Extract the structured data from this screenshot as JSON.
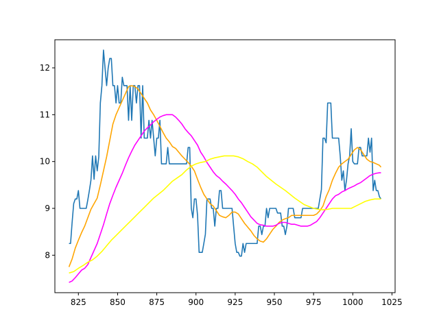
{
  "chart_data": {
    "type": "line",
    "title": "",
    "xlabel": "",
    "ylabel": "",
    "xlim": [
      810,
      1027
    ],
    "ylim": [
      7.2,
      12.6
    ],
    "grid": false,
    "legend": "none",
    "x_ticks": [
      825,
      850,
      875,
      900,
      925,
      950,
      975,
      1000,
      1025
    ],
    "y_ticks": [
      8,
      9,
      10,
      11,
      12
    ],
    "series": [
      {
        "color": "#1f77b4",
        "x": [
          819,
          820,
          821,
          822,
          823,
          824,
          825,
          826,
          827,
          828,
          829,
          830,
          831,
          832,
          833,
          834,
          835,
          836,
          837,
          838,
          839,
          840,
          841,
          842,
          843,
          844,
          845,
          846,
          847,
          848,
          849,
          850,
          851,
          852,
          853,
          854,
          855,
          856,
          857,
          858,
          859,
          860,
          861,
          862,
          863,
          864,
          865,
          866,
          867,
          868,
          869,
          870,
          871,
          872,
          873,
          874,
          875,
          876,
          877,
          878,
          879,
          880,
          881,
          882,
          883,
          884,
          885,
          886,
          887,
          888,
          889,
          890,
          891,
          892,
          893,
          894,
          895,
          896,
          897,
          898,
          899,
          900,
          901,
          902,
          903,
          904,
          905,
          906,
          907,
          908,
          909,
          910,
          911,
          912,
          913,
          914,
          915,
          916,
          917,
          918,
          919,
          920,
          921,
          922,
          923,
          924,
          925,
          926,
          927,
          928,
          929,
          930,
          931,
          932,
          933,
          934,
          935,
          936,
          937,
          938,
          939,
          940,
          941,
          942,
          943,
          944,
          945,
          946,
          947,
          948,
          949,
          950,
          951,
          952,
          953,
          954,
          955,
          956,
          957,
          958,
          959,
          960,
          961,
          962,
          963,
          964,
          965,
          966,
          967,
          968,
          969,
          970,
          971,
          972,
          973,
          974,
          975,
          976,
          977,
          978,
          979,
          980,
          981,
          982,
          983,
          984,
          985,
          986,
          987,
          988,
          989,
          990,
          991,
          992,
          993,
          994,
          995,
          996,
          997,
          998,
          999,
          1000,
          1001,
          1002,
          1003,
          1004,
          1005,
          1006,
          1007,
          1008,
          1009,
          1010,
          1011,
          1012,
          1013,
          1014,
          1015,
          1016,
          1017,
          1018
        ],
        "y": [
          8.25,
          8.25,
          8.7,
          9.1,
          9.2,
          9.2,
          9.38,
          9.0,
          9.0,
          9.0,
          9.0,
          9.0,
          9.18,
          9.38,
          9.6,
          10.12,
          9.62,
          10.12,
          9.8,
          10.1,
          11.25,
          11.62,
          12.38,
          12.0,
          11.62,
          12.0,
          12.2,
          12.2,
          11.62,
          11.62,
          11.25,
          11.62,
          11.25,
          11.25,
          11.8,
          11.62,
          11.62,
          11.62,
          10.88,
          11.62,
          10.88,
          11.62,
          11.62,
          11.25,
          11.62,
          11.62,
          10.5,
          11.62,
          10.5,
          10.5,
          10.5,
          10.88,
          10.5,
          10.88,
          10.5,
          10.12,
          10.5,
          10.5,
          10.88,
          9.95,
          9.95,
          9.95,
          9.95,
          10.3,
          9.95,
          9.95,
          9.95,
          9.95,
          9.95,
          9.95,
          9.95,
          9.95,
          9.95,
          9.95,
          9.95,
          9.95,
          10.3,
          10.3,
          9.0,
          8.8,
          9.2,
          9.2,
          8.85,
          8.06,
          8.06,
          8.06,
          8.25,
          8.45,
          9.2,
          9.2,
          9.2,
          9.0,
          9.0,
          8.62,
          9.0,
          9.0,
          9.38,
          9.38,
          9.0,
          9.0,
          9.0,
          9.0,
          9.0,
          9.0,
          9.0,
          8.62,
          8.25,
          8.06,
          8.06,
          7.98,
          7.98,
          8.25,
          8.06,
          8.25,
          8.25,
          8.25,
          8.25,
          8.25,
          8.25,
          8.25,
          8.25,
          8.62,
          8.62,
          8.44,
          8.62,
          8.62,
          9.0,
          8.8,
          9.0,
          9.0,
          9.0,
          9.0,
          9.0,
          8.9,
          8.9,
          8.9,
          8.62,
          8.62,
          8.44,
          8.62,
          9.0,
          9.0,
          9.0,
          9.0,
          8.8,
          8.8,
          8.8,
          8.8,
          8.8,
          9.0,
          9.0,
          9.0,
          9.0,
          9.0,
          9.0,
          9.0,
          9.0,
          9.0,
          9.0,
          9.0,
          9.2,
          9.4,
          10.5,
          10.5,
          10.4,
          11.25,
          11.25,
          11.25,
          10.5,
          10.5,
          10.5,
          10.5,
          10.5,
          10.12,
          9.6,
          9.8,
          9.38,
          9.6,
          9.95,
          10.12,
          10.7,
          10.0,
          9.95,
          9.95,
          9.95,
          10.3,
          10.3,
          10.12,
          10.12,
          10.12,
          10.12,
          10.5,
          10.2,
          10.5,
          9.38,
          9.6,
          9.38,
          9.38,
          9.25,
          9.2
        ]
      },
      {
        "color": "#ffa500",
        "x": [
          819,
          821,
          823,
          825,
          827,
          829,
          831,
          833,
          835,
          837,
          839,
          841,
          843,
          845,
          847,
          849,
          851,
          853,
          855,
          857,
          859,
          861,
          863,
          865,
          867,
          869,
          871,
          873,
          875,
          877,
          879,
          881,
          883,
          885,
          887,
          889,
          891,
          893,
          895,
          897,
          899,
          901,
          903,
          905,
          907,
          909,
          911,
          913,
          915,
          917,
          919,
          921,
          923,
          925,
          927,
          929,
          931,
          933,
          935,
          937,
          939,
          941,
          943,
          945,
          947,
          949,
          951,
          953,
          955,
          957,
          959,
          961,
          963,
          965,
          967,
          969,
          971,
          973,
          975,
          977,
          979,
          981,
          983,
          985,
          987,
          989,
          991,
          993,
          995,
          997,
          999,
          1001,
          1003,
          1005,
          1007,
          1009,
          1011,
          1013,
          1015,
          1017,
          1018
        ],
        "y": [
          7.75,
          7.92,
          8.15,
          8.32,
          8.48,
          8.62,
          8.8,
          8.98,
          9.1,
          9.22,
          9.5,
          9.8,
          10.1,
          10.45,
          10.8,
          11.0,
          11.15,
          11.3,
          11.45,
          11.6,
          11.62,
          11.6,
          11.55,
          11.45,
          11.35,
          11.25,
          11.1,
          11.0,
          10.88,
          10.75,
          10.62,
          10.5,
          10.42,
          10.32,
          10.28,
          10.2,
          10.12,
          10.05,
          9.98,
          9.9,
          9.8,
          9.62,
          9.45,
          9.3,
          9.2,
          9.1,
          9.05,
          8.95,
          8.85,
          8.82,
          8.8,
          8.85,
          8.92,
          8.92,
          8.88,
          8.78,
          8.68,
          8.6,
          8.52,
          8.42,
          8.35,
          8.3,
          8.28,
          8.35,
          8.45,
          8.55,
          8.62,
          8.7,
          8.75,
          8.78,
          8.8,
          8.85,
          8.85,
          8.85,
          8.85,
          8.85,
          8.85,
          8.85,
          8.85,
          8.88,
          8.95,
          9.05,
          9.25,
          9.4,
          9.6,
          9.75,
          9.88,
          9.95,
          10.0,
          10.05,
          10.15,
          10.25,
          10.3,
          10.25,
          10.15,
          10.05,
          10.0,
          9.98,
          9.95,
          9.92,
          9.88
        ]
      },
      {
        "color": "#ff00ff",
        "x": [
          819,
          821,
          823,
          825,
          827,
          829,
          831,
          833,
          835,
          837,
          839,
          841,
          843,
          845,
          847,
          849,
          851,
          853,
          855,
          857,
          859,
          861,
          863,
          865,
          867,
          869,
          871,
          873,
          875,
          877,
          879,
          881,
          883,
          885,
          887,
          889,
          891,
          893,
          895,
          897,
          899,
          901,
          903,
          905,
          907,
          909,
          911,
          913,
          915,
          917,
          919,
          921,
          923,
          925,
          927,
          929,
          931,
          933,
          935,
          937,
          939,
          941,
          943,
          945,
          947,
          949,
          951,
          953,
          955,
          957,
          959,
          961,
          963,
          965,
          967,
          969,
          971,
          973,
          975,
          977,
          979,
          981,
          983,
          985,
          987,
          989,
          991,
          993,
          995,
          997,
          999,
          1001,
          1003,
          1005,
          1007,
          1009,
          1011,
          1013,
          1015,
          1017,
          1018
        ],
        "y": [
          7.42,
          7.45,
          7.52,
          7.6,
          7.68,
          7.72,
          7.8,
          7.95,
          8.1,
          8.25,
          8.45,
          8.65,
          8.88,
          9.1,
          9.28,
          9.45,
          9.6,
          9.75,
          9.92,
          10.08,
          10.22,
          10.35,
          10.45,
          10.55,
          10.65,
          10.72,
          10.78,
          10.85,
          10.9,
          10.95,
          10.98,
          11.0,
          11.0,
          11.0,
          10.95,
          10.88,
          10.8,
          10.7,
          10.62,
          10.55,
          10.45,
          10.35,
          10.2,
          10.1,
          9.98,
          9.88,
          9.78,
          9.7,
          9.65,
          9.58,
          9.52,
          9.45,
          9.38,
          9.3,
          9.2,
          9.12,
          9.02,
          8.92,
          8.82,
          8.75,
          8.68,
          8.65,
          8.64,
          8.62,
          8.62,
          8.62,
          8.64,
          8.68,
          8.7,
          8.7,
          8.68,
          8.66,
          8.66,
          8.64,
          8.62,
          8.62,
          8.62,
          8.64,
          8.68,
          8.72,
          8.8,
          8.9,
          9.0,
          9.1,
          9.2,
          9.27,
          9.3,
          9.35,
          9.38,
          9.42,
          9.45,
          9.48,
          9.52,
          9.55,
          9.6,
          9.65,
          9.7,
          9.73,
          9.75,
          9.76,
          9.76
        ]
      },
      {
        "color": "#ffff00",
        "x": [
          819,
          822,
          825,
          828,
          831,
          834,
          837,
          840,
          843,
          846,
          849,
          852,
          855,
          858,
          861,
          864,
          867,
          870,
          873,
          876,
          879,
          882,
          885,
          888,
          891,
          894,
          897,
          900,
          903,
          906,
          909,
          912,
          915,
          918,
          921,
          924,
          927,
          930,
          933,
          936,
          939,
          942,
          945,
          948,
          951,
          954,
          957,
          960,
          963,
          966,
          969,
          972,
          975,
          978,
          981,
          984,
          987,
          990,
          993,
          996,
          999,
          1002,
          1005,
          1008,
          1011,
          1014,
          1017,
          1018
        ],
        "y": [
          7.62,
          7.65,
          7.72,
          7.78,
          7.85,
          7.9,
          7.98,
          8.08,
          8.2,
          8.32,
          8.42,
          8.52,
          8.62,
          8.72,
          8.82,
          8.92,
          9.02,
          9.12,
          9.22,
          9.3,
          9.38,
          9.48,
          9.58,
          9.65,
          9.72,
          9.82,
          9.9,
          9.95,
          9.98,
          10.0,
          10.05,
          10.08,
          10.1,
          10.12,
          10.12,
          10.12,
          10.1,
          10.06,
          10.0,
          9.95,
          9.88,
          9.78,
          9.68,
          9.6,
          9.52,
          9.45,
          9.38,
          9.3,
          9.22,
          9.15,
          9.08,
          9.04,
          9.0,
          8.98,
          8.97,
          8.98,
          9.0,
          9.0,
          9.0,
          9.0,
          9.0,
          9.05,
          9.1,
          9.15,
          9.18,
          9.2,
          9.2,
          9.2
        ]
      }
    ]
  }
}
